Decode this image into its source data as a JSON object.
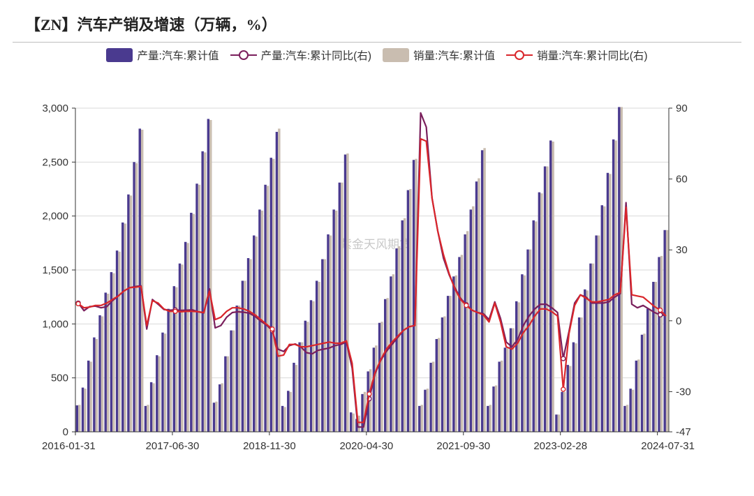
{
  "title": "【ZN】汽车产销及增速（万辆，%）",
  "watermark": "紫金天风期货",
  "legend": [
    {
      "label": "产量:汽车:累计值",
      "kind": "bar",
      "color": "#4a3a8f"
    },
    {
      "label": "产量:汽车:累计同比(右)",
      "kind": "line",
      "color": "#7a1f5c"
    },
    {
      "label": "销量:汽车:累计值",
      "kind": "bar",
      "color": "#c9bdb0"
    },
    {
      "label": "销量:汽车:累计同比(右)",
      "kind": "line",
      "color": "#d9262b"
    }
  ],
  "chart_data": {
    "type": "bar+line",
    "x_start": "2016-01-31",
    "frequency": "monthly",
    "x_tick_labels": [
      "2016-01-31",
      "2017-06-30",
      "2018-11-30",
      "2020-04-30",
      "2021-09-30",
      "2023-02-28",
      "2024-07-31"
    ],
    "y_left": {
      "ticks": [
        0,
        500,
        1000,
        1500,
        2000,
        2500,
        3000
      ],
      "tick_labels": [
        "0",
        "500",
        "1,000",
        "1,500",
        "2,000",
        "2,500",
        "3,000"
      ],
      "range": [
        0,
        3000
      ]
    },
    "y_right": {
      "ticks": [
        -47,
        -30,
        0,
        30,
        60,
        90
      ],
      "tick_labels": [
        "-47",
        "-30",
        "0",
        "30",
        "60",
        "90"
      ],
      "range": [
        -47,
        90
      ]
    },
    "series": [
      {
        "name": "产量:汽车:累计值",
        "type": "bar",
        "axis": "left",
        "color": "#4a3a8f",
        "values": [
          245,
          410,
          660,
          875,
          1080,
          1290,
          1480,
          1680,
          1940,
          2200,
          2500,
          2810,
          240,
          460,
          710,
          920,
          1140,
          1350,
          1560,
          1760,
          2030,
          2300,
          2600,
          2900,
          270,
          440,
          700,
          940,
          1170,
          1400,
          1610,
          1820,
          2060,
          2290,
          2540,
          2780,
          240,
          380,
          640,
          830,
          1030,
          1220,
          1400,
          1600,
          1830,
          2060,
          2310,
          2570,
          180,
          120,
          350,
          560,
          780,
          1010,
          1230,
          1440,
          1700,
          1960,
          2240,
          2520,
          240,
          390,
          640,
          860,
          1060,
          1260,
          1440,
          1620,
          1830,
          2060,
          2320,
          2610,
          240,
          420,
          650,
          780,
          960,
          1210,
          1460,
          1690,
          1960,
          2220,
          2460,
          2700,
          160,
          370,
          620,
          830,
          1060,
          1320,
          1560,
          1820,
          2100,
          2400,
          2710,
          3010,
          240,
          400,
          660,
          900,
          1140,
          1390,
          1620,
          1870
        ]
      },
      {
        "name": "销量:汽车:累计值",
        "type": "bar",
        "axis": "left",
        "color": "#c9bdb0",
        "values": [
          250,
          400,
          650,
          860,
          1070,
          1280,
          1470,
          1670,
          1930,
          2190,
          2490,
          2800,
          250,
          450,
          700,
          910,
          1130,
          1340,
          1550,
          1750,
          2020,
          2290,
          2590,
          2890,
          280,
          450,
          700,
          940,
          1170,
          1400,
          1600,
          1810,
          2050,
          2280,
          2530,
          2810,
          230,
          370,
          620,
          830,
          1020,
          1210,
          1390,
          1600,
          1820,
          2050,
          2310,
          2580,
          170,
          150,
          370,
          580,
          800,
          1020,
          1240,
          1460,
          1720,
          1980,
          2250,
          2530,
          250,
          400,
          650,
          870,
          1070,
          1260,
          1450,
          1640,
          1860,
          2090,
          2350,
          2630,
          250,
          430,
          660,
          780,
          960,
          1200,
          1450,
          1690,
          1950,
          2210,
          2460,
          2690,
          160,
          370,
          610,
          820,
          1060,
          1310,
          1560,
          1820,
          2090,
          2390,
          2700,
          3010,
          250,
          390,
          670,
          910,
          1140,
          1390,
          1630,
          1870
        ]
      },
      {
        "name": "产量:汽车:累计同比(右)",
        "type": "line",
        "axis": "right",
        "color": "#7a1f5c",
        "values": [
          7.5,
          4.3,
          6.0,
          6.2,
          5.5,
          6.0,
          8.5,
          10.5,
          12.6,
          14.0,
          14.5,
          14.8,
          -3.5,
          9.0,
          7.0,
          4.8,
          4.5,
          4.6,
          4.4,
          4.5,
          4.6,
          3.8,
          3.3,
          13.5,
          -3.0,
          -2.0,
          1.5,
          3.5,
          3.8,
          3.6,
          3.2,
          1.8,
          -0.2,
          -1.8,
          -4.2,
          -12.0,
          -13.0,
          -10.5,
          -9.8,
          -11.0,
          -13.5,
          -14.0,
          -12.5,
          -12.0,
          -11.5,
          -10.5,
          -10.0,
          -9.0,
          -20.0,
          -45.0,
          -45.0,
          -33.0,
          -22.5,
          -16.8,
          -13.0,
          -10.0,
          -7.0,
          -4.0,
          -2.5,
          -2.0,
          88.0,
          82.0,
          52.0,
          38.0,
          26.5,
          19.5,
          14.0,
          9.5,
          6.8,
          4.5,
          3.5,
          3.0,
          0.5,
          8.0,
          1.0,
          -9.0,
          -11.0,
          -8.0,
          -2.0,
          2.0,
          5.0,
          7.0,
          7.0,
          5.5,
          3.5,
          -16.0,
          -4.5,
          7.5,
          11.0,
          10.0,
          7.5,
          7.5,
          7.5,
          8.0,
          10.0,
          11.5,
          50.0,
          7.0,
          5.5,
          6.5,
          5.0,
          3.5,
          2.5,
          2.3
        ]
      },
      {
        "name": "销量:汽车:累计同比(右)",
        "type": "line",
        "axis": "right",
        "color": "#d9262b",
        "values": [
          7.2,
          5.5,
          5.8,
          6.5,
          6.5,
          7.5,
          9.0,
          10.5,
          12.6,
          14.0,
          14.2,
          14.5,
          -2.0,
          8.5,
          7.5,
          5.0,
          4.0,
          4.0,
          3.8,
          4.0,
          4.0,
          3.8,
          3.5,
          12.5,
          0.5,
          1.5,
          4.0,
          5.5,
          5.5,
          5.0,
          4.0,
          2.5,
          0.5,
          -1.5,
          -3.5,
          -15.0,
          -14.5,
          -10.0,
          -10.0,
          -11.0,
          -11.0,
          -10.5,
          -10.0,
          -9.5,
          -9.0,
          -9.5,
          -9.5,
          -8.5,
          -18.0,
          -43.0,
          -43.0,
          -31.0,
          -22.0,
          -16.5,
          -12.0,
          -9.0,
          -6.5,
          -4.0,
          -2.5,
          -2.0,
          77.0,
          76.0,
          52.0,
          38.0,
          28.0,
          20.0,
          13.5,
          9.0,
          6.5,
          4.5,
          3.5,
          2.5,
          -0.5,
          7.5,
          -0.5,
          -11.0,
          -12.0,
          -9.5,
          -5.0,
          -2.0,
          2.0,
          5.0,
          5.0,
          3.8,
          2.0,
          -29.0,
          -5.5,
          6.5,
          11.0,
          9.5,
          8.0,
          8.0,
          8.5,
          9.0,
          11.0,
          12.0,
          48.0,
          11.0,
          10.5,
          10.0,
          8.0,
          6.0,
          4.5,
          2.0
        ]
      }
    ]
  }
}
